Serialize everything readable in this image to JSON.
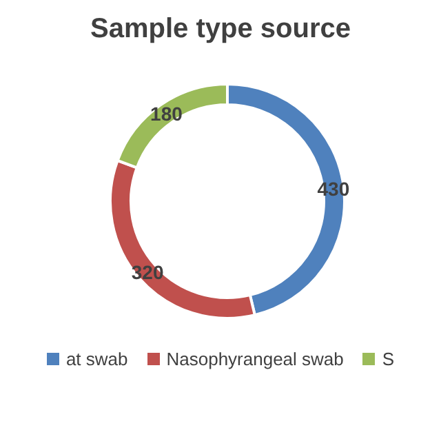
{
  "chart_data": {
    "type": "donut",
    "title": "Sample type source",
    "categories": [
      "at swab",
      "Nasophyrangeal swab",
      "S"
    ],
    "values": [
      430,
      320,
      180
    ],
    "colors": [
      "#4f81bd",
      "#c0504d",
      "#9bbb59"
    ],
    "data_labels": true,
    "legend": "bottom"
  }
}
